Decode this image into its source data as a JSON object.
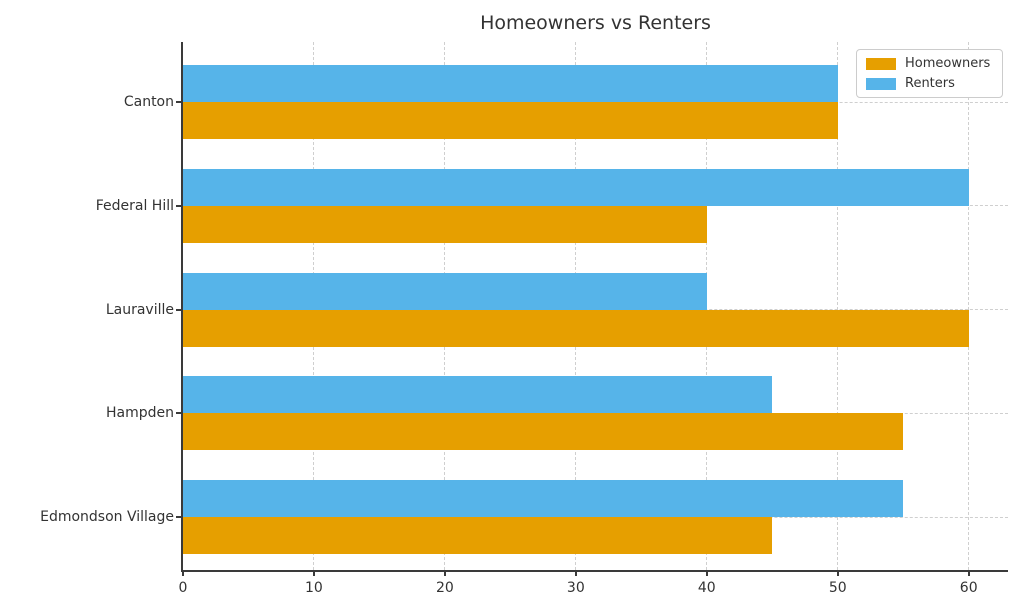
{
  "title": "Homeowners vs Renters",
  "colors": {
    "homeowners": "#E69F00",
    "renters": "#56B4E9",
    "grid": "#cfcfcf",
    "axis": "#3a3a3a",
    "text": "#333333",
    "legend_border": "#cccccc",
    "background": "#ffffff"
  },
  "chart_data": {
    "type": "bar",
    "orientation": "horizontal",
    "title": "Homeowners vs Renters",
    "categories": [
      "Canton",
      "Federal Hill",
      "Lauraville",
      "Hampden",
      "Edmondson Village"
    ],
    "series": [
      {
        "name": "Homeowners",
        "color": "#E69F00",
        "values": [
          50,
          40,
          60,
          55,
          45
        ]
      },
      {
        "name": "Renters",
        "color": "#56B4E9",
        "values": [
          50,
          60,
          40,
          45,
          55
        ]
      }
    ],
    "xlabel": "",
    "ylabel": "",
    "xlim": [
      0,
      63
    ],
    "xticks": [
      0,
      10,
      20,
      30,
      40,
      50,
      60
    ],
    "grid": true,
    "grid_style": "dashed",
    "legend_position": "upper right",
    "bar_order_top_to_bottom": [
      "Renters",
      "Homeowners"
    ]
  }
}
